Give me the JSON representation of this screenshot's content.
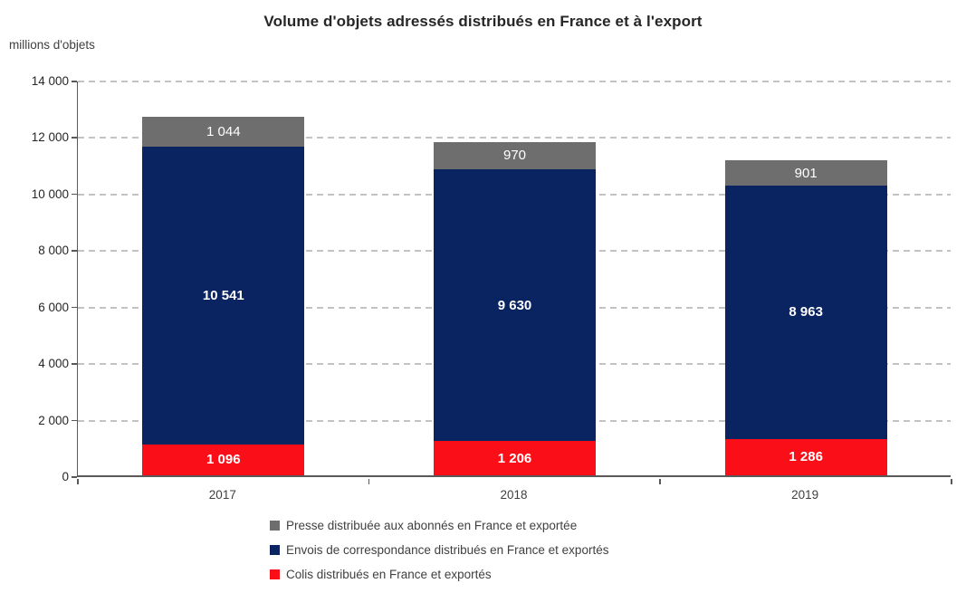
{
  "title": "Volume d'objets adressés distribués en France et à l'export",
  "unit_label": "millions d'objets",
  "colors": {
    "presse": "#6e6e6e",
    "courrier": "#0a2361",
    "colis": "#fa0f19",
    "grid": "#c3c3c3",
    "axis": "#595959",
    "label_text": "#ffffff"
  },
  "chart_data": {
    "type": "bar",
    "stacked": true,
    "title": "Volume d'objets adressés distribués en France et à l'export",
    "ylabel": "millions d'objets",
    "xlabel": "",
    "categories": [
      "2017",
      "2018",
      "2019"
    ],
    "series": [
      {
        "name": "Colis distribués en France et exportés",
        "color_key": "colis",
        "values": [
          1096,
          1206,
          1286
        ],
        "labels": [
          "1 096",
          "1 206",
          "1 286"
        ],
        "label_bold": true
      },
      {
        "name": "Envois de correspondance distribués en France et exportés",
        "color_key": "courrier",
        "values": [
          10541,
          9630,
          8963
        ],
        "labels": [
          "10 541",
          "9 630",
          "8 963"
        ],
        "label_bold": true
      },
      {
        "name": "Presse distribuée aux abonnés en France et exportée",
        "color_key": "presse",
        "values": [
          1044,
          970,
          901
        ],
        "labels": [
          "1 044",
          "970",
          "901"
        ],
        "label_bold": false
      }
    ],
    "ylim": [
      0,
      14000
    ],
    "ytick_step": 2000,
    "yticks": [
      "0",
      "2 000",
      "4 000",
      "6 000",
      "8 000",
      "10 000",
      "12 000",
      "14 000"
    ],
    "grid": "dashed-horizontal",
    "legend_position": "bottom",
    "legend": [
      {
        "label": "Presse distribuée aux abonnés en France et exportée",
        "color_key": "presse"
      },
      {
        "label": "Envois de correspondance distribués en France et exportés",
        "color_key": "courrier"
      },
      {
        "label": "Colis distribués en France et exportés",
        "color_key": "colis"
      }
    ]
  }
}
